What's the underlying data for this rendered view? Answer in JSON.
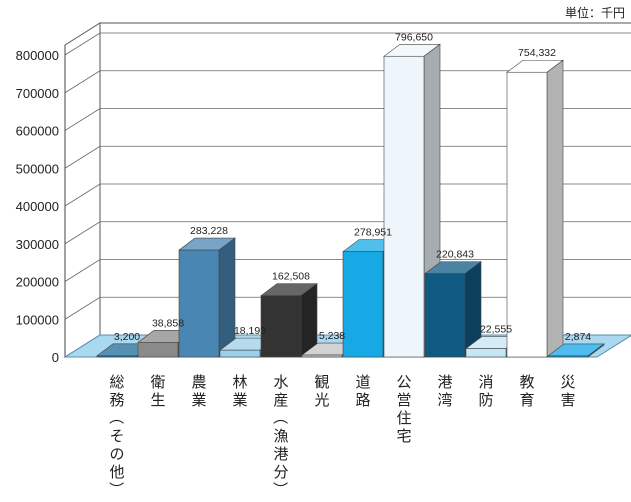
{
  "chart_data": {
    "type": "bar",
    "unit": "単位：千円",
    "ylim": [
      0,
      800000
    ],
    "yticks": [
      0,
      100000,
      200000,
      300000,
      400000,
      500000,
      600000,
      700000,
      800000
    ],
    "grid": true,
    "categories": [
      "総務（その他）",
      "衛生",
      "農業",
      "林業",
      "水産（漁港分）",
      "観光",
      "道路",
      "公営住宅",
      "港湾",
      "消防",
      "教育",
      "災害"
    ],
    "values": [
      3200,
      38858,
      283228,
      18193,
      162508,
      5238,
      278951,
      796650,
      220843,
      22555,
      754332,
      2874
    ],
    "value_labels": [
      "3,200",
      "38,858",
      "283,228",
      "18,193",
      "162,508",
      "5,238",
      "278,951",
      "796,650",
      "220,843",
      "22,555",
      "754,332",
      "2,874"
    ],
    "colors": [
      "#1d6c99",
      "#8a8a8a",
      "#4a86b4",
      "#9ccfe9",
      "#333333",
      "#c3c3c3",
      "#16a9e5",
      "#eef5fb",
      "#0f5a83",
      "#c5e6f6",
      "#ffffff",
      "#13a5e6"
    ]
  }
}
